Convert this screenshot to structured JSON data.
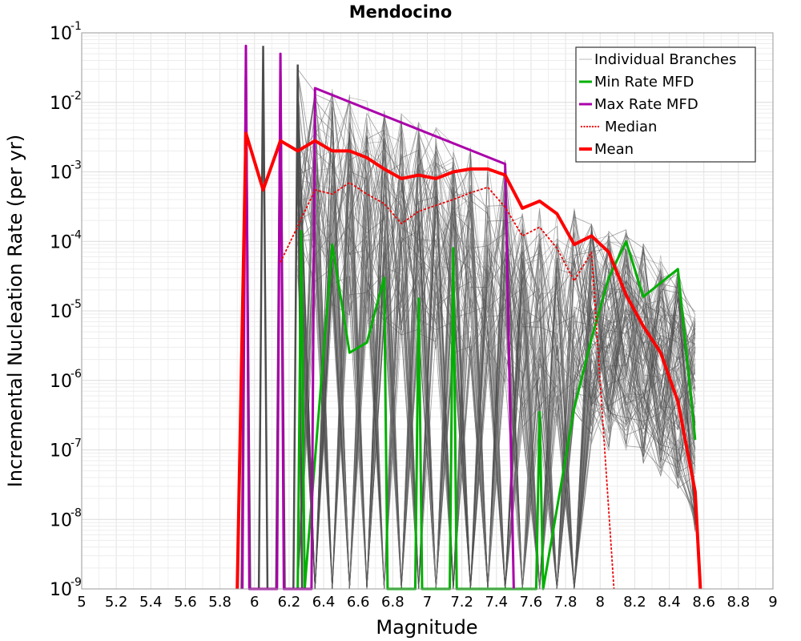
{
  "chart_data": {
    "type": "line",
    "title": "Mendocino",
    "xlabel": "Magnitude",
    "ylabel": "Incremental Nucleation Rate (per yr)",
    "xlim": [
      5,
      9
    ],
    "ylim": [
      1e-09,
      0.1
    ],
    "yscale": "log",
    "grid": true,
    "legend_position": "top-right",
    "x_ticks": [
      "5",
      "5.2",
      "5.4",
      "5.6",
      "5.8",
      "6",
      "6.2",
      "6.4",
      "6.6",
      "6.8",
      "7",
      "7.2",
      "7.4",
      "7.6",
      "7.8",
      "8",
      "8.2",
      "8.4",
      "8.6",
      "8.8",
      "9"
    ],
    "y_ticks": [
      {
        "base": "10",
        "exp": "-9"
      },
      {
        "base": "10",
        "exp": "-8"
      },
      {
        "base": "10",
        "exp": "-7"
      },
      {
        "base": "10",
        "exp": "-6"
      },
      {
        "base": "10",
        "exp": "-5"
      },
      {
        "base": "10",
        "exp": "-4"
      },
      {
        "base": "10",
        "exp": "-3"
      },
      {
        "base": "10",
        "exp": "-2"
      },
      {
        "base": "10",
        "exp": "-1"
      }
    ],
    "series": [
      {
        "name": "Individual Branches",
        "color": "#555555",
        "style": "thin",
        "description_points": [
          [
            5.95,
            1e-09
          ],
          [
            6.05,
            0.065
          ],
          [
            6.15,
            1e-09
          ],
          [
            6.25,
            0.03
          ],
          [
            6.35,
            0.02
          ],
          [
            7.0,
            0.005
          ],
          [
            7.45,
            0.0015
          ],
          [
            7.55,
            0.0003
          ],
          [
            7.85,
            0.0003
          ],
          [
            8.0,
            0.00015
          ],
          [
            8.15,
            0.00015
          ],
          [
            8.3,
            8e-05
          ],
          [
            8.45,
            4e-05
          ],
          [
            8.55,
            1e-05
          ]
        ]
      },
      {
        "name": "Min Rate MFD",
        "color": "#00b000",
        "x": [
          6.25,
          6.27,
          6.29,
          6.45,
          6.55,
          6.65,
          6.75,
          6.77,
          6.93,
          6.95,
          6.97,
          7.13,
          7.15,
          7.17,
          7.63,
          7.65,
          7.67,
          7.85,
          7.95,
          8.05,
          8.15,
          8.25,
          8.45,
          8.55
        ],
        "y": [
          1e-09,
          0.00014,
          1e-09,
          9e-05,
          2.5e-06,
          3.5e-06,
          3e-05,
          1e-09,
          1e-09,
          1.5e-05,
          1e-09,
          1e-09,
          8e-05,
          1e-09,
          1e-09,
          3.5e-07,
          1e-09,
          4e-07,
          4e-06,
          3e-05,
          0.0001,
          1.6e-05,
          4e-05,
          1.4e-07
        ]
      },
      {
        "name": "Max Rate MFD",
        "color": "#aa00aa",
        "x": [
          5.93,
          5.95,
          5.97,
          6.13,
          6.15,
          6.17,
          6.33,
          6.35,
          7.45,
          7.5
        ],
        "y": [
          1e-09,
          0.065,
          1e-09,
          1e-09,
          0.05,
          1e-09,
          1e-09,
          0.016,
          0.0013,
          1e-09
        ]
      },
      {
        "name": "Median",
        "color": "#ee0000",
        "dashed": true,
        "x": [
          6.15,
          6.35,
          6.45,
          6.55,
          6.65,
          6.75,
          6.85,
          6.95,
          7.05,
          7.15,
          7.25,
          7.35,
          7.45,
          7.55,
          7.65,
          7.75,
          7.85,
          7.95,
          8.08
        ],
        "y": [
          5e-05,
          0.00055,
          0.00048,
          0.0007,
          0.00048,
          0.00035,
          0.00018,
          0.00027,
          0.00033,
          0.0004,
          0.0005,
          0.0006,
          0.00031,
          0.00012,
          0.00016,
          8e-05,
          2.7e-05,
          7e-05,
          1e-09
        ]
      },
      {
        "name": "Mean",
        "color": "#ff0000",
        "x": [
          5.9,
          5.95,
          6.05,
          6.15,
          6.25,
          6.35,
          6.45,
          6.55,
          6.65,
          6.75,
          6.85,
          6.95,
          7.05,
          7.15,
          7.25,
          7.35,
          7.45,
          7.55,
          7.65,
          7.75,
          7.85,
          7.95,
          8.05,
          8.15,
          8.25,
          8.35,
          8.45,
          8.55,
          8.58
        ],
        "y": [
          1e-09,
          0.0036,
          0.00055,
          0.0028,
          0.002,
          0.0028,
          0.002,
          0.002,
          0.0016,
          0.0011,
          0.0008,
          0.0009,
          0.0008,
          0.001,
          0.0011,
          0.0011,
          0.0009,
          0.0003,
          0.00038,
          0.00025,
          9e-05,
          0.00012,
          7e-05,
          1.7e-05,
          6e-06,
          2.5e-06,
          5e-07,
          2.5e-08,
          1e-09
        ]
      }
    ],
    "legend": [
      {
        "label": "Individual Branches",
        "color": "#bbbbbb",
        "style": "thin"
      },
      {
        "label": "Min Rate MFD",
        "color": "#00b000",
        "style": "solid"
      },
      {
        "label": "Max Rate MFD",
        "color": "#aa00aa",
        "style": "solid"
      },
      {
        "label": "Median",
        "color": "#ee0000",
        "style": "dotted"
      },
      {
        "label": "Mean",
        "color": "#ff0000",
        "style": "thick"
      }
    ]
  }
}
